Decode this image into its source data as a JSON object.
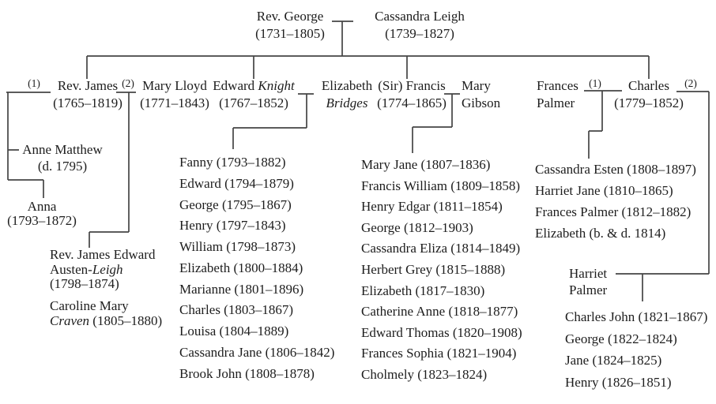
{
  "diagram": {
    "type": "family-tree",
    "subject": "Austen family genealogy"
  },
  "labels": {
    "m1": "(1)",
    "m2": "(2)"
  },
  "people": {
    "george": {
      "name": "Rev. George",
      "dates": "(1731–1805)"
    },
    "cassandra": {
      "name": "Cassandra Leigh",
      "dates": "(1739–1827)"
    },
    "james": {
      "name": "Rev. James",
      "dates": "(1765–1819)"
    },
    "mary_lloyd": {
      "name": "Mary Lloyd",
      "dates": "(1771–1843)"
    },
    "edward": {
      "first": "Edward",
      "surname": "Knight",
      "dates": "(1767–1852)"
    },
    "elizabeth": {
      "name": "Elizabeth",
      "surname": "Bridges"
    },
    "francis": {
      "name": "(Sir) Francis",
      "dates": "(1774–1865)"
    },
    "mary_gibson": {
      "line1": "Mary",
      "line2": "Gibson"
    },
    "frances_palmer": {
      "line1": "Frances",
      "line2": "Palmer"
    },
    "charles": {
      "name": "Charles",
      "dates": "(1779–1852)"
    },
    "anne_matthew": {
      "name": "Anne Matthew",
      "dates": "(d. 1795)"
    },
    "anna": {
      "name": "Anna",
      "dates": "(1793–1872)"
    },
    "james_edward": {
      "line1": "Rev. James Edward",
      "line2a": "Austen-",
      "line2b": "Leigh",
      "dates": "(1798–1874)"
    },
    "caroline": {
      "line1": "Caroline Mary",
      "line2a": "Craven",
      "line2b": " (1805–1880)"
    },
    "harriet_palmer": {
      "line1": "Harriet",
      "line2": "Palmer"
    }
  },
  "children": {
    "knight": [
      "Fanny (1793–1882)",
      "Edward (1794–1879)",
      "George (1795–1867)",
      "Henry (1797–1843)",
      "William (1798–1873)",
      "Elizabeth (1800–1884)",
      "Marianne (1801–1896)",
      "Charles (1803–1867)",
      "Louisa (1804–1889)",
      "Cassandra Jane (1806–1842)",
      "Brook John (1808–1878)"
    ],
    "francis": [
      "Mary Jane (1807–1836)",
      "Francis William (1809–1858)",
      "Henry Edgar (1811–1854)",
      "George (1812–1903)",
      "Cassandra Eliza (1814–1849)",
      "Herbert Grey (1815–1888)",
      "Elizabeth (1817–1830)",
      "Catherine Anne (1818–1877)",
      "Edward Thomas (1820–1908)",
      "Frances Sophia (1821–1904)",
      "Cholmely (1823–1824)"
    ],
    "charles_first": [
      "Cassandra Esten (1808–1897)",
      "Harriet Jane (1810–1865)",
      "Frances Palmer (1812–1882)",
      "Elizabeth (b. & d. 1814)"
    ],
    "charles_second": [
      "Charles John (1821–1867)",
      "George (1822–1824)",
      "Jane (1824–1825)",
      "Henry (1826–1851)"
    ]
  }
}
